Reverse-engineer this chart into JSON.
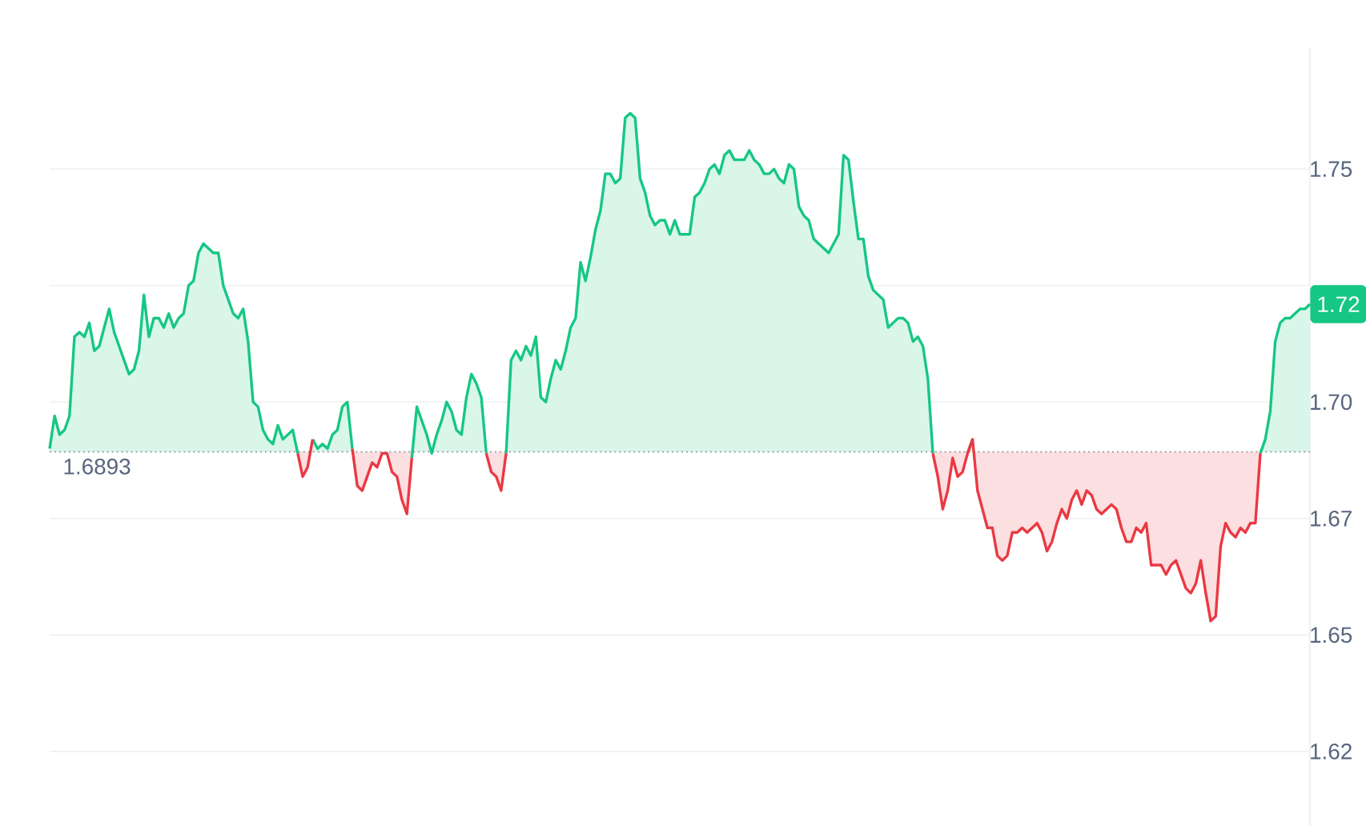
{
  "chart_data": {
    "type": "area",
    "categories": [
      null,
      null,
      null,
      null,
      null,
      null,
      null,
      null,
      null,
      null,
      null,
      null,
      null,
      null,
      null,
      null,
      null,
      null,
      null,
      null,
      null,
      null,
      null,
      null,
      null,
      null,
      null,
      null,
      null,
      null,
      null,
      null,
      null,
      null,
      null,
      null,
      null,
      null,
      null,
      null,
      null,
      null,
      null,
      null,
      null,
      null,
      null,
      null,
      null,
      null,
      null,
      null,
      null,
      null,
      null,
      null,
      null,
      null,
      null,
      null,
      null,
      null,
      null,
      null,
      null,
      null,
      null,
      null,
      null,
      null,
      null,
      null,
      null,
      null,
      null,
      null,
      null,
      null,
      null,
      null,
      null,
      null,
      null,
      null,
      null,
      null,
      null,
      null,
      null,
      null,
      null,
      null,
      null,
      null,
      null,
      null,
      null,
      null,
      null,
      null,
      null,
      null,
      null,
      null,
      null,
      null,
      null,
      null,
      null,
      null,
      null,
      null,
      null,
      null,
      null,
      null,
      null,
      null,
      null,
      null,
      null,
      null,
      null,
      null,
      null,
      null,
      null,
      null,
      null,
      null,
      null,
      null,
      null,
      null,
      null,
      null,
      null,
      null,
      null,
      null,
      null,
      null,
      null,
      null,
      null,
      null,
      null,
      null,
      null,
      null,
      null,
      null,
      null,
      null,
      null,
      null,
      null,
      null,
      null,
      null,
      null,
      null,
      null,
      null,
      null,
      null,
      null,
      null,
      null,
      null,
      null,
      null,
      null,
      null,
      null,
      null,
      null,
      null,
      null,
      null,
      null,
      null,
      null,
      null,
      null,
      null,
      null,
      null,
      null,
      null,
      null,
      null,
      null,
      null,
      null,
      null,
      null,
      null,
      null,
      null,
      null,
      null,
      null,
      null,
      null,
      null,
      null,
      null,
      null,
      null,
      null,
      null,
      null,
      null,
      null,
      null,
      null,
      null,
      null,
      null,
      null,
      null,
      null,
      null,
      null,
      null,
      null,
      null,
      null,
      null,
      null,
      null,
      null,
      null,
      null,
      null,
      null,
      null,
      null,
      null,
      null,
      null,
      null,
      null,
      null,
      null,
      null,
      null,
      null,
      null,
      null,
      null,
      null,
      null,
      null
    ],
    "series": [
      {
        "color": "#16c784",
        "values": [
          1.69,
          1.697,
          1.693,
          1.694,
          1.697,
          1.714,
          1.715,
          1.714,
          1.717,
          1.711,
          1.712,
          1.716,
          1.72,
          1.715,
          1.712,
          1.709,
          1.706,
          1.707,
          1.711,
          1.723,
          1.714,
          1.718,
          1.718,
          1.716,
          1.719,
          1.716,
          1.718,
          1.719,
          1.725,
          1.726,
          1.732,
          1.734,
          1.733,
          1.732,
          1.732,
          1.725,
          1.722,
          1.719,
          1.718,
          1.72,
          1.713,
          1.7,
          1.699,
          1.694,
          1.692,
          1.691,
          1.695,
          1.692,
          1.693,
          1.694,
          1.689,
          null,
          null,
          1.692,
          1.69,
          1.691,
          1.69,
          1.693,
          1.694,
          1.699,
          1.7,
          1.69,
          null,
          null,
          null,
          null,
          null,
          null,
          null,
          null,
          null,
          null,
          null,
          1.688,
          1.699,
          1.696,
          1.693,
          1.689,
          1.693,
          1.696,
          1.7,
          1.698,
          1.694,
          1.693,
          1.701,
          1.706,
          1.704,
          1.701,
          1.689,
          null,
          null,
          null,
          1.689,
          1.709,
          1.711,
          1.709,
          1.712,
          1.71,
          1.714,
          1.701,
          1.7,
          1.705,
          1.709,
          1.707,
          1.711,
          1.716,
          1.718,
          1.73,
          1.726,
          1.731,
          1.737,
          1.741,
          1.749,
          1.749,
          1.747,
          1.748,
          1.761,
          1.762,
          1.761,
          1.748,
          1.745,
          1.74,
          1.738,
          1.739,
          1.739,
          1.736,
          1.739,
          1.736,
          1.736,
          1.736,
          1.744,
          1.745,
          1.747,
          1.75,
          1.751,
          1.749,
          1.753,
          1.754,
          1.752,
          1.752,
          1.752,
          1.754,
          1.752,
          1.751,
          1.749,
          1.749,
          1.75,
          1.748,
          1.747,
          1.751,
          1.75,
          1.742,
          1.74,
          1.739,
          1.735,
          1.734,
          1.733,
          1.732,
          1.734,
          1.736,
          1.753,
          1.752,
          1.743,
          1.735,
          1.735,
          1.727,
          1.724,
          1.723,
          1.722,
          1.716,
          1.717,
          1.718,
          1.718,
          1.717,
          1.713,
          1.714,
          1.712,
          1.705,
          1.689,
          null,
          null,
          null,
          null,
          null,
          null,
          1.689,
          1.692,
          null,
          null,
          null,
          null,
          null,
          null,
          null,
          null,
          null,
          null,
          null,
          null,
          null,
          null,
          null,
          null,
          null,
          null,
          null,
          null,
          null,
          null,
          null,
          null,
          null,
          null,
          null,
          null,
          null,
          null,
          null,
          null,
          null,
          null,
          null,
          null,
          null,
          null,
          null,
          null,
          null,
          null,
          null,
          null,
          null,
          null,
          null,
          null,
          null,
          null,
          null,
          null,
          null,
          null,
          null,
          null,
          null,
          1.689,
          1.692,
          1.698,
          1.713,
          1.717,
          1.718,
          1.718,
          1.719,
          1.72,
          1.72,
          1.721
        ]
      },
      {
        "color": "#ea3943",
        "values": [
          null,
          null,
          null,
          null,
          null,
          null,
          null,
          null,
          null,
          null,
          null,
          null,
          null,
          null,
          null,
          null,
          null,
          null,
          null,
          null,
          null,
          null,
          null,
          null,
          null,
          null,
          null,
          null,
          null,
          null,
          null,
          null,
          null,
          null,
          null,
          null,
          null,
          null,
          null,
          null,
          null,
          null,
          null,
          null,
          null,
          null,
          null,
          null,
          null,
          null,
          1.689,
          1.684,
          1.686,
          1.692,
          null,
          null,
          null,
          null,
          null,
          null,
          null,
          1.69,
          1.682,
          1.681,
          1.684,
          1.687,
          1.686,
          1.689,
          1.689,
          1.685,
          1.684,
          1.679,
          1.676,
          1.688,
          null,
          null,
          null,
          null,
          null,
          null,
          null,
          null,
          null,
          null,
          null,
          null,
          null,
          null,
          1.689,
          1.685,
          1.684,
          1.681,
          1.689,
          null,
          null,
          null,
          null,
          null,
          null,
          null,
          null,
          null,
          null,
          null,
          null,
          null,
          null,
          null,
          null,
          null,
          null,
          null,
          null,
          null,
          null,
          null,
          null,
          null,
          null,
          null,
          null,
          null,
          null,
          null,
          null,
          null,
          null,
          null,
          null,
          null,
          null,
          null,
          null,
          null,
          null,
          null,
          null,
          null,
          null,
          null,
          null,
          null,
          null,
          null,
          null,
          null,
          null,
          null,
          null,
          null,
          null,
          null,
          null,
          null,
          null,
          null,
          null,
          null,
          null,
          null,
          null,
          null,
          null,
          null,
          null,
          null,
          null,
          null,
          null,
          null,
          null,
          null,
          null,
          null,
          null,
          null,
          null,
          null,
          1.689,
          1.684,
          1.677,
          1.681,
          1.688,
          1.684,
          1.685,
          1.689,
          1.692,
          1.681,
          1.677,
          1.673,
          1.673,
          1.667,
          1.666,
          1.667,
          1.672,
          1.672,
          1.673,
          1.672,
          1.673,
          1.674,
          1.672,
          1.668,
          1.67,
          1.674,
          1.677,
          1.675,
          1.679,
          1.681,
          1.678,
          1.681,
          1.68,
          1.677,
          1.676,
          1.677,
          1.678,
          1.677,
          1.673,
          1.67,
          1.67,
          1.673,
          1.672,
          1.674,
          1.665,
          1.665,
          1.665,
          1.663,
          1.665,
          1.666,
          1.663,
          1.66,
          1.659,
          1.661,
          1.666,
          1.659,
          1.653,
          1.654,
          1.669,
          1.674,
          1.672,
          1.671,
          1.673,
          1.672,
          1.674,
          1.674,
          1.689,
          null,
          null,
          null,
          null,
          null,
          null,
          null,
          null,
          null,
          null
        ]
      }
    ],
    "ylim": [
      1.609,
      1.776
    ],
    "yticks": [
      {
        "value": 1.625,
        "label": "1.62"
      },
      1.65,
      {
        "value": 1.675,
        "label": "1.67"
      },
      {
        "value": 1.7,
        "label": "1.70"
      },
      {
        "value": 1.725,
        "label": null
      },
      1.75
    ],
    "grid": "y",
    "ref_lines": [
      {
        "axis": "y",
        "value": 1.6893,
        "label": "1.6893",
        "color": "#9aa3ae",
        "line_style": "dotted"
      }
    ],
    "annotations": [
      {
        "text": "1.72",
        "y": 1.721
      }
    ]
  }
}
